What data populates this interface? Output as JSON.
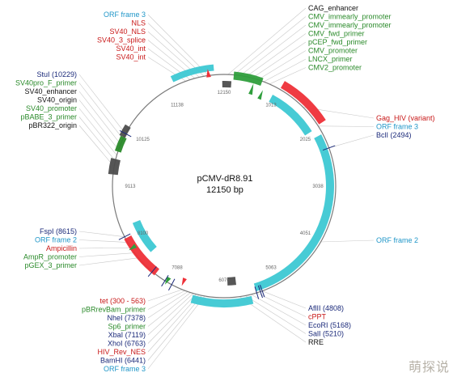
{
  "plasmid": {
    "name": "pCMV-dR8.91",
    "size": "12150 bp"
  },
  "colors": {
    "orf": "#3dc8d3",
    "gene": "#ee3038",
    "primer": "#2f9e3c",
    "promoter": "#2a8a2a",
    "enzyme": "#1b2a7a",
    "red_label": "#c81818",
    "orf_label": "#1f96c8",
    "dark_label": "#111111",
    "feature_grey": "#4d4d4d"
  },
  "ticks": [
    "1013",
    "2025",
    "3038",
    "4051",
    "5063",
    "6076",
    "7088",
    "8100",
    "9113",
    "10125",
    "11138",
    "12150"
  ],
  "labels_top_left": [
    {
      "text": "ORF frame 3",
      "kind": "orf"
    },
    {
      "text": "NLS",
      "kind": "red"
    },
    {
      "text": "SV40_NLS",
      "kind": "red"
    },
    {
      "text": "SV40_3_splice",
      "kind": "red"
    },
    {
      "text": "SV40_int",
      "kind": "red"
    },
    {
      "text": "SV40_int",
      "kind": "red"
    }
  ],
  "labels_top_right": [
    {
      "text": "CAG_enhancer",
      "kind": "dark"
    },
    {
      "text": "CMV_immearly_promoter",
      "kind": "green"
    },
    {
      "text": "CMV_immearly_promoter",
      "kind": "green"
    },
    {
      "text": "CMV_fwd_primer",
      "kind": "green"
    },
    {
      "text": "pCEP_fwd_primer",
      "kind": "green"
    },
    {
      "text": "CMV_promoter",
      "kind": "green"
    },
    {
      "text": "LNCX_primer",
      "kind": "green"
    },
    {
      "text": "CMV2_promoter",
      "kind": "green"
    }
  ],
  "labels_left": [
    {
      "text": "StuI (10229)",
      "kind": "enzyme"
    },
    {
      "text": "SV40pro_F_primer",
      "kind": "green"
    },
    {
      "text": "SV40_enhancer",
      "kind": "dark"
    },
    {
      "text": "SV40_origin",
      "kind": "dark"
    },
    {
      "text": "SV40_promoter",
      "kind": "green"
    },
    {
      "text": "pBABE_3_primer",
      "kind": "green"
    },
    {
      "text": "pBR322_origin",
      "kind": "dark"
    }
  ],
  "labels_right": [
    {
      "text": "Gag_HIV (variant)",
      "kind": "red"
    },
    {
      "text": "ORF frame 3",
      "kind": "orf"
    },
    {
      "text": "BclI (2494)",
      "kind": "enzyme"
    }
  ],
  "label_right_mid": {
    "text": "ORF frame 2",
    "kind": "orf"
  },
  "labels_left_mid": [
    {
      "text": "FspI (8615)",
      "kind": "enzyme"
    },
    {
      "text": "ORF frame 2",
      "kind": "orf"
    },
    {
      "text": "Ampicillin",
      "kind": "red"
    },
    {
      "text": "AmpR_promoter",
      "kind": "green"
    },
    {
      "text": "pGEX_3_primer",
      "kind": "green"
    }
  ],
  "labels_bottom_left": [
    {
      "text": "tet (300 - 563)",
      "kind": "red"
    },
    {
      "text": "pBRrevBam_primer",
      "kind": "green"
    },
    {
      "text": "NheI (7378)",
      "kind": "enzyme"
    },
    {
      "text": "Sp6_primer",
      "kind": "green"
    },
    {
      "text": "XbaI (7119)",
      "kind": "enzyme"
    },
    {
      "text": "XhoI (6763)",
      "kind": "enzyme"
    },
    {
      "text": "HIV_Rev_NES",
      "kind": "red"
    },
    {
      "text": "BamHI (6441)",
      "kind": "enzyme"
    },
    {
      "text": "ORF frame 3",
      "kind": "orf"
    }
  ],
  "labels_bottom_right": [
    {
      "text": "AflII (4808)",
      "kind": "enzyme"
    },
    {
      "text": "cPPT",
      "kind": "red"
    },
    {
      "text": "EcoRI (5168)",
      "kind": "enzyme"
    },
    {
      "text": "SalI (5210)",
      "kind": "enzyme"
    },
    {
      "text": "RRE",
      "kind": "dark"
    }
  ],
  "watermark": "萌探说"
}
